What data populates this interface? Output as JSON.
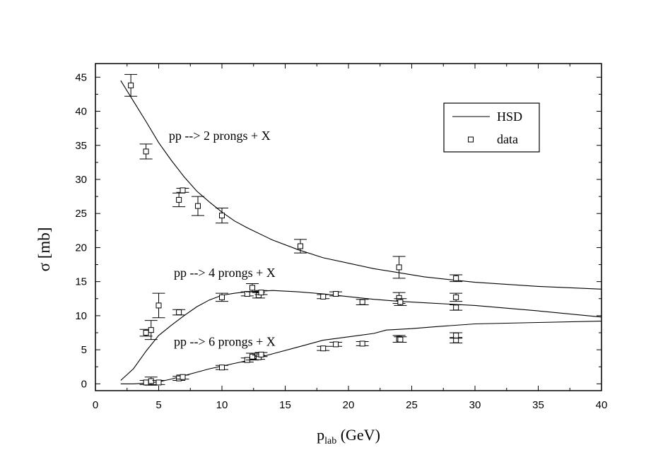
{
  "chart_data": {
    "type": "line",
    "xlabel": {
      "main": "p",
      "sub": "lab",
      "unit": " (GeV)"
    },
    "ylabel": "σ [mb]",
    "xlim": [
      0,
      40
    ],
    "ylim": [
      -1,
      47
    ],
    "xticks": [
      0,
      5,
      10,
      15,
      20,
      25,
      30,
      35,
      40
    ],
    "yticks": [
      0,
      5,
      10,
      15,
      20,
      25,
      30,
      35,
      40,
      45
    ],
    "legend": {
      "position": "top-right",
      "entries": [
        {
          "label": "HSD",
          "style": "line"
        },
        {
          "label": "data",
          "style": "open-square"
        }
      ]
    },
    "annotations": [
      {
        "text": "pp --> 2 prongs + X",
        "x": 5.8,
        "y": 35.8
      },
      {
        "text": "pp --> 4 prongs + X",
        "x": 6.2,
        "y": 15.7
      },
      {
        "text": "pp --> 6 prongs + X",
        "x": 6.2,
        "y": 5.6
      }
    ],
    "series": [
      {
        "kind": "curve",
        "points": [
          [
            2,
            44.5
          ],
          [
            3,
            41.5
          ],
          [
            4,
            38.5
          ],
          [
            5,
            35.4
          ],
          [
            6,
            32.8
          ],
          [
            7,
            30.4
          ],
          [
            8,
            28.3
          ],
          [
            9,
            26.7
          ],
          [
            10,
            25.2
          ],
          [
            11,
            23.9
          ],
          [
            12,
            22.9
          ],
          [
            14,
            21.1
          ],
          [
            16,
            19.7
          ],
          [
            18,
            18.5
          ],
          [
            20,
            17.7
          ],
          [
            22,
            16.9
          ],
          [
            24,
            16.3
          ],
          [
            26,
            15.7
          ],
          [
            28,
            15.3
          ],
          [
            30,
            14.9
          ],
          [
            35,
            14.3
          ],
          [
            40,
            13.9
          ]
        ]
      },
      {
        "kind": "curve",
        "points": [
          [
            2,
            0.5
          ],
          [
            3,
            2.2
          ],
          [
            4,
            4.8
          ],
          [
            5,
            7.1
          ],
          [
            6,
            8.6
          ],
          [
            7,
            10.0
          ],
          [
            8,
            11.3
          ],
          [
            9,
            12.3
          ],
          [
            10,
            13.0
          ],
          [
            11,
            13.3
          ],
          [
            12,
            13.5
          ],
          [
            13,
            13.6
          ],
          [
            14,
            13.7
          ],
          [
            16,
            13.5
          ],
          [
            18,
            13.2
          ],
          [
            20,
            12.8
          ],
          [
            22,
            12.4
          ],
          [
            24,
            12.1
          ],
          [
            26,
            11.9
          ],
          [
            28,
            11.7
          ],
          [
            30,
            11.5
          ],
          [
            35,
            10.7
          ],
          [
            40,
            9.8
          ]
        ]
      },
      {
        "kind": "curve",
        "points": [
          [
            2,
            0.0
          ],
          [
            3,
            0.0
          ],
          [
            4,
            0.1
          ],
          [
            5,
            0.3
          ],
          [
            6,
            0.7
          ],
          [
            7,
            1.2
          ],
          [
            8,
            1.7
          ],
          [
            9,
            2.2
          ],
          [
            10,
            2.6
          ],
          [
            11,
            3.0
          ],
          [
            12,
            3.4
          ],
          [
            13,
            3.9
          ],
          [
            14,
            4.4
          ],
          [
            16,
            5.4
          ],
          [
            18,
            6.4
          ],
          [
            20,
            6.9
          ],
          [
            22,
            7.4
          ],
          [
            23,
            7.9
          ],
          [
            25,
            8.1
          ],
          [
            27,
            8.4
          ],
          [
            30,
            8.8
          ],
          [
            35,
            9.0
          ],
          [
            40,
            9.2
          ]
        ]
      },
      {
        "kind": "data",
        "points": [
          {
            "x": 2.8,
            "y": 43.8,
            "err": 1.6
          },
          {
            "x": 4.0,
            "y": 34.1,
            "err": 1.1
          },
          {
            "x": 6.6,
            "y": 27.0,
            "err": 1.0
          },
          {
            "x": 6.9,
            "y": 28.4,
            "err": 0.3
          },
          {
            "x": 8.1,
            "y": 26.1,
            "err": 1.4
          },
          {
            "x": 10.0,
            "y": 24.7,
            "err": 1.1
          },
          {
            "x": 16.2,
            "y": 20.2,
            "err": 1.0
          },
          {
            "x": 24.0,
            "y": 17.1,
            "err": 1.6
          },
          {
            "x": 28.5,
            "y": 15.5,
            "err": 0.5
          }
        ]
      },
      {
        "kind": "data",
        "points": [
          {
            "x": 4.0,
            "y": 7.5,
            "err": 0.5
          },
          {
            "x": 4.4,
            "y": 7.9,
            "err": 1.4
          },
          {
            "x": 5.0,
            "y": 11.5,
            "err": 1.8
          },
          {
            "x": 6.6,
            "y": 10.5,
            "err": 0.4
          },
          {
            "x": 10.0,
            "y": 12.7,
            "err": 0.6
          },
          {
            "x": 12.0,
            "y": 13.2,
            "err": 0.3
          },
          {
            "x": 12.4,
            "y": 14.1,
            "err": 0.6
          },
          {
            "x": 12.9,
            "y": 13.0,
            "err": 0.4
          },
          {
            "x": 13.1,
            "y": 13.4,
            "err": 0.3
          },
          {
            "x": 18.0,
            "y": 12.8,
            "err": 0.3
          },
          {
            "x": 19.0,
            "y": 13.2,
            "err": 0.3
          },
          {
            "x": 21.1,
            "y": 12.0,
            "err": 0.4
          },
          {
            "x": 24.0,
            "y": 12.6,
            "err": 0.8
          },
          {
            "x": 24.1,
            "y": 12.0,
            "err": 0.5
          },
          {
            "x": 28.5,
            "y": 12.7,
            "err": 0.6
          },
          {
            "x": 28.5,
            "y": 11.2,
            "err": 0.4
          }
        ]
      },
      {
        "kind": "data",
        "points": [
          {
            "x": 4.0,
            "y": 0.2,
            "err": 0.3
          },
          {
            "x": 4.4,
            "y": 0.4,
            "err": 0.6
          },
          {
            "x": 5.0,
            "y": 0.2,
            "err": 0.3
          },
          {
            "x": 6.6,
            "y": 0.8,
            "err": 0.3
          },
          {
            "x": 6.9,
            "y": 1.0,
            "err": 0.3
          },
          {
            "x": 10.0,
            "y": 2.4,
            "err": 0.3
          },
          {
            "x": 12.0,
            "y": 3.5,
            "err": 0.3
          },
          {
            "x": 12.4,
            "y": 4.0,
            "err": 0.5
          },
          {
            "x": 12.9,
            "y": 3.9,
            "err": 0.3
          },
          {
            "x": 13.1,
            "y": 4.3,
            "err": 0.3
          },
          {
            "x": 18.0,
            "y": 5.2,
            "err": 0.3
          },
          {
            "x": 19.0,
            "y": 5.8,
            "err": 0.3
          },
          {
            "x": 21.1,
            "y": 5.9,
            "err": 0.3
          },
          {
            "x": 24.0,
            "y": 6.6,
            "err": 0.5
          },
          {
            "x": 24.1,
            "y": 6.5,
            "err": 0.4
          },
          {
            "x": 28.5,
            "y": 6.4,
            "err": 0.4
          },
          {
            "x": 28.5,
            "y": 7.1,
            "err": 0.4
          }
        ]
      }
    ]
  }
}
